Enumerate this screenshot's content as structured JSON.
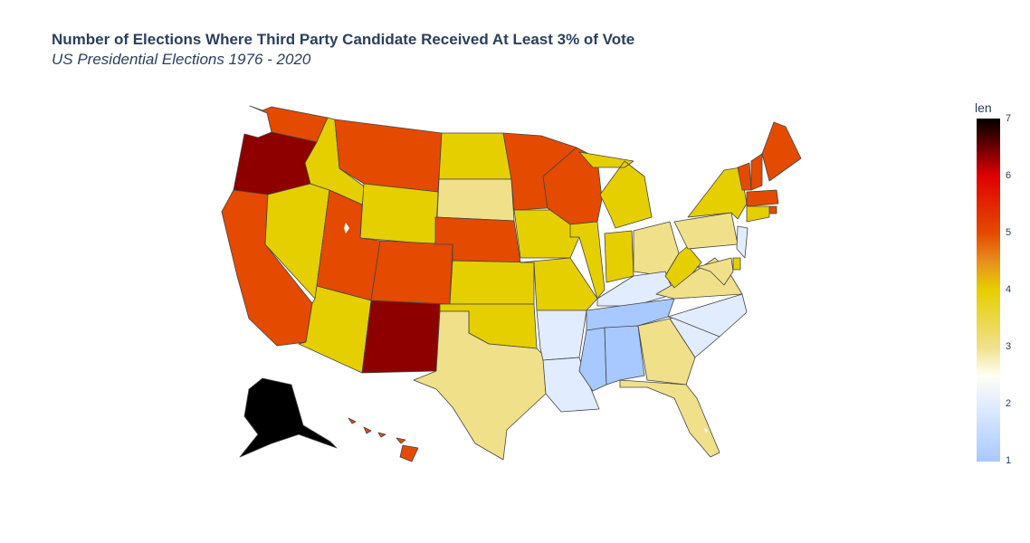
{
  "title": "Number of Elections Where Third Party Candidate Received At Least 3% of Vote",
  "subtitle": "US Presidential Elections 1976 - 2020",
  "colorbar": {
    "title": "len",
    "ticks": [
      "7",
      "6",
      "5",
      "4",
      "3",
      "2",
      "1"
    ]
  },
  "map_data": {
    "value_field": "len",
    "range": [
      1,
      7
    ],
    "states": {
      "WA": 5,
      "OR": 6,
      "CA": 5,
      "NV": 4,
      "ID": 4,
      "MT": 5,
      "WY": 4,
      "UT": 5,
      "AZ": 4,
      "NM": 6,
      "CO": 5,
      "ND": 4,
      "SD": 3,
      "NE": 5,
      "KS": 4,
      "OK": 4,
      "TX": 3,
      "MN": 5,
      "IA": 4,
      "MO": 4,
      "AR": 2,
      "LA": 2,
      "WI": 5,
      "IL": 4,
      "MI": 4,
      "IN": 4,
      "OH": 3,
      "KY": 2,
      "TN": 1,
      "MS": 1,
      "AL": 1,
      "GA": 3,
      "FL": 3,
      "SC": 2,
      "NC": 2,
      "VA": 3,
      "WV": 4,
      "PA": 3,
      "NY": 4,
      "VT": 5,
      "NH": 5,
      "ME": 5,
      "MA": 5,
      "RI": 5,
      "CT": 4,
      "NJ": 2,
      "DE": 4,
      "MD": 3,
      "AK": 7,
      "HI": 5
    }
  }
}
